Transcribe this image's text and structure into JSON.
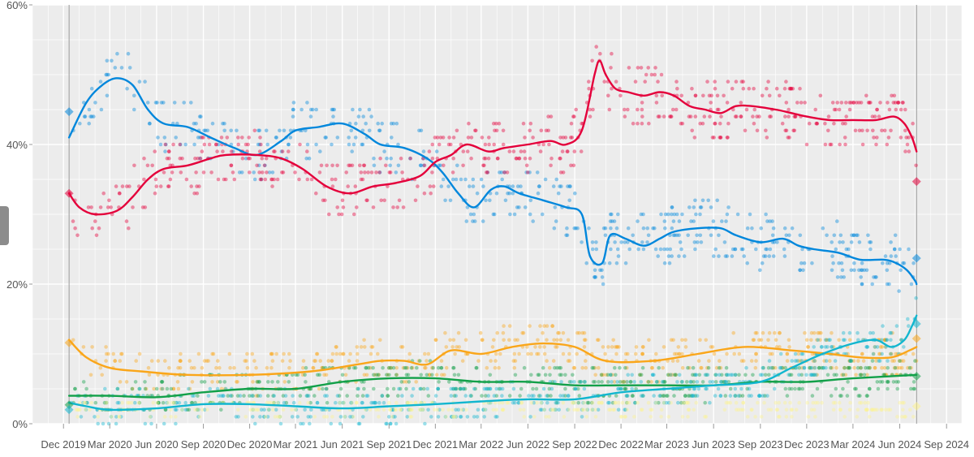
{
  "chart_data": {
    "type": "scatter",
    "title": "",
    "xlabel": "",
    "ylabel": "",
    "y_unit": "%",
    "grid": true,
    "legend": "none",
    "x_range": [
      "2019-10-01",
      "2024-10-01"
    ],
    "ylim": [
      0,
      60
    ],
    "y_ticks": [
      {
        "value": 0,
        "label": "0%"
      },
      {
        "value": 20,
        "label": "20%"
      },
      {
        "value": 40,
        "label": "40%"
      },
      {
        "value": 60,
        "label": "60%"
      }
    ],
    "x_ticks": [
      {
        "date": "2019-12-01",
        "label": "Dec 2019"
      },
      {
        "date": "2020-03-01",
        "label": "Mar 2020"
      },
      {
        "date": "2020-06-01",
        "label": "Jun 2020"
      },
      {
        "date": "2020-09-01",
        "label": "Sep 2020"
      },
      {
        "date": "2020-12-01",
        "label": "Dec 2020"
      },
      {
        "date": "2021-03-01",
        "label": "Mar 2021"
      },
      {
        "date": "2021-06-01",
        "label": "Jun 2021"
      },
      {
        "date": "2021-09-01",
        "label": "Sep 2021"
      },
      {
        "date": "2021-12-01",
        "label": "Dec 2021"
      },
      {
        "date": "2022-03-01",
        "label": "Mar 2022"
      },
      {
        "date": "2022-06-01",
        "label": "Jun 2022"
      },
      {
        "date": "2022-09-01",
        "label": "Sep 2022"
      },
      {
        "date": "2022-12-01",
        "label": "Dec 2022"
      },
      {
        "date": "2023-03-01",
        "label": "Mar 2023"
      },
      {
        "date": "2023-06-01",
        "label": "Jun 2023"
      },
      {
        "date": "2023-09-01",
        "label": "Sep 2023"
      },
      {
        "date": "2023-12-01",
        "label": "Dec 2023"
      },
      {
        "date": "2024-03-01",
        "label": "Mar 2024"
      },
      {
        "date": "2024-06-01",
        "label": "Jun 2024"
      },
      {
        "date": "2024-09-01",
        "label": "Sep 2024"
      }
    ],
    "reference_lines": [
      {
        "date": "2019-12-12"
      },
      {
        "date": "2024-07-04"
      }
    ],
    "series": [
      {
        "color": "#0087dc",
        "trend": [
          [
            "2019-12-12",
            41
          ],
          [
            "2020-01-15",
            46
          ],
          [
            "2020-02-15",
            48.5
          ],
          [
            "2020-03-15",
            49.5
          ],
          [
            "2020-04-15",
            48.5
          ],
          [
            "2020-05-15",
            45
          ],
          [
            "2020-06-15",
            43
          ],
          [
            "2020-08-01",
            42.5
          ],
          [
            "2020-09-15",
            41
          ],
          [
            "2020-11-01",
            39.5
          ],
          [
            "2020-12-15",
            38.5
          ],
          [
            "2021-02-01",
            40.5
          ],
          [
            "2021-03-01",
            42
          ],
          [
            "2021-04-15",
            42.5
          ],
          [
            "2021-06-01",
            43
          ],
          [
            "2021-07-15",
            41.5
          ],
          [
            "2021-08-15",
            40
          ],
          [
            "2021-10-01",
            39.5
          ],
          [
            "2021-11-15",
            38
          ],
          [
            "2021-12-15",
            36
          ],
          [
            "2022-01-15",
            33
          ],
          [
            "2022-02-15",
            31
          ],
          [
            "2022-03-20",
            33.5
          ],
          [
            "2022-04-15",
            34
          ],
          [
            "2022-05-15",
            33
          ],
          [
            "2022-07-01",
            32
          ],
          [
            "2022-08-15",
            31
          ],
          [
            "2022-09-15",
            30
          ],
          [
            "2022-10-01",
            24
          ],
          [
            "2022-10-25",
            23
          ],
          [
            "2022-11-10",
            27
          ],
          [
            "2022-12-10",
            26.5
          ],
          [
            "2023-01-15",
            25.5
          ],
          [
            "2023-02-15",
            26.5
          ],
          [
            "2023-03-15",
            27.5
          ],
          [
            "2023-05-01",
            28
          ],
          [
            "2023-06-15",
            28
          ],
          [
            "2023-07-15",
            27
          ],
          [
            "2023-09-01",
            26
          ],
          [
            "2023-10-15",
            26.5
          ],
          [
            "2023-11-15",
            25.5
          ],
          [
            "2023-12-15",
            25
          ],
          [
            "2024-02-01",
            24.5
          ],
          [
            "2024-03-15",
            23.5
          ],
          [
            "2024-05-01",
            23.5
          ],
          [
            "2024-05-25",
            23
          ],
          [
            "2024-06-15",
            22
          ],
          [
            "2024-07-01",
            20.5
          ],
          [
            "2024-07-04",
            20
          ]
        ],
        "band": 4,
        "points": 520,
        "final": 23.7,
        "start": 44.7
      },
      {
        "color": "#e4003b",
        "trend": [
          [
            "2019-12-12",
            33
          ],
          [
            "2020-01-01",
            31
          ],
          [
            "2020-02-01",
            30
          ],
          [
            "2020-03-15",
            30.5
          ],
          [
            "2020-04-15",
            32.5
          ],
          [
            "2020-05-15",
            35
          ],
          [
            "2020-06-15",
            36.5
          ],
          [
            "2020-08-01",
            37
          ],
          [
            "2020-09-15",
            38
          ],
          [
            "2020-10-15",
            38.5
          ],
          [
            "2020-12-15",
            38.5
          ],
          [
            "2021-02-01",
            38
          ],
          [
            "2021-03-15",
            36.5
          ],
          [
            "2021-05-01",
            34
          ],
          [
            "2021-06-15",
            33
          ],
          [
            "2021-08-01",
            34
          ],
          [
            "2021-09-15",
            34.5
          ],
          [
            "2021-11-01",
            35.5
          ],
          [
            "2021-12-01",
            37.5
          ],
          [
            "2022-01-01",
            38.5
          ],
          [
            "2022-02-01",
            40
          ],
          [
            "2022-03-15",
            39
          ],
          [
            "2022-04-15",
            39.5
          ],
          [
            "2022-06-01",
            40
          ],
          [
            "2022-07-15",
            40.5
          ],
          [
            "2022-08-15",
            40
          ],
          [
            "2022-09-15",
            42
          ],
          [
            "2022-10-10",
            50
          ],
          [
            "2022-10-20",
            52
          ],
          [
            "2022-11-01",
            50
          ],
          [
            "2022-11-20",
            48
          ],
          [
            "2022-12-15",
            47.5
          ],
          [
            "2023-01-15",
            47
          ],
          [
            "2023-02-15",
            47.5
          ],
          [
            "2023-03-15",
            47
          ],
          [
            "2023-04-15",
            45.5
          ],
          [
            "2023-05-15",
            45
          ],
          [
            "2023-06-15",
            44.5
          ],
          [
            "2023-07-15",
            45.5
          ],
          [
            "2023-08-15",
            45.5
          ],
          [
            "2023-10-01",
            45
          ],
          [
            "2023-11-01",
            44.5
          ],
          [
            "2023-12-01",
            44
          ],
          [
            "2024-01-15",
            43.5
          ],
          [
            "2024-03-01",
            43.5
          ],
          [
            "2024-04-15",
            43.5
          ],
          [
            "2024-05-20",
            44
          ],
          [
            "2024-06-10",
            43
          ],
          [
            "2024-06-25",
            41
          ],
          [
            "2024-07-04",
            39
          ]
        ],
        "band": 4,
        "points": 560,
        "final": 34.7,
        "start": 33
      },
      {
        "color": "#faa61a",
        "trend": [
          [
            "2019-12-12",
            12
          ],
          [
            "2020-01-15",
            9.5
          ],
          [
            "2020-03-01",
            8
          ],
          [
            "2020-05-01",
            7.5
          ],
          [
            "2020-08-01",
            7
          ],
          [
            "2020-12-01",
            7
          ],
          [
            "2021-04-01",
            7.5
          ],
          [
            "2021-07-01",
            8.5
          ],
          [
            "2021-08-15",
            9
          ],
          [
            "2021-10-01",
            9
          ],
          [
            "2021-11-15",
            8.5
          ],
          [
            "2022-01-01",
            10.5
          ],
          [
            "2022-03-01",
            10
          ],
          [
            "2022-05-01",
            11
          ],
          [
            "2022-07-01",
            11.5
          ],
          [
            "2022-09-01",
            11
          ],
          [
            "2022-11-01",
            9
          ],
          [
            "2023-02-01",
            9
          ],
          [
            "2023-05-01",
            10
          ],
          [
            "2023-08-01",
            11
          ],
          [
            "2023-11-01",
            10.5
          ],
          [
            "2024-01-15",
            10
          ],
          [
            "2024-03-15",
            9.5
          ],
          [
            "2024-05-15",
            9.5
          ],
          [
            "2024-06-20",
            10.5
          ],
          [
            "2024-07-04",
            11
          ]
        ],
        "band": 3,
        "points": 520,
        "final": 12.2,
        "start": 11.6
      },
      {
        "color": "#12a049",
        "trend": [
          [
            "2019-12-12",
            4
          ],
          [
            "2020-03-01",
            4
          ],
          [
            "2020-06-01",
            3.8
          ],
          [
            "2020-09-01",
            4.5
          ],
          [
            "2020-12-01",
            5
          ],
          [
            "2021-03-01",
            5
          ],
          [
            "2021-06-01",
            6
          ],
          [
            "2021-09-01",
            6.5
          ],
          [
            "2021-12-01",
            6.5
          ],
          [
            "2022-03-01",
            6
          ],
          [
            "2022-06-01",
            6
          ],
          [
            "2022-09-01",
            5.5
          ],
          [
            "2022-12-01",
            5.5
          ],
          [
            "2023-03-01",
            5.5
          ],
          [
            "2023-06-01",
            5.5
          ],
          [
            "2023-09-01",
            6
          ],
          [
            "2023-12-01",
            6
          ],
          [
            "2024-03-01",
            6.5
          ],
          [
            "2024-07-04",
            7
          ]
        ],
        "band": 2.5,
        "points": 480,
        "final": 6.8,
        "start": 2.7
      },
      {
        "color": "#12b6cf",
        "trend": [
          [
            "2019-12-12",
            3
          ],
          [
            "2020-01-15",
            2.5
          ],
          [
            "2020-03-01",
            2
          ],
          [
            "2020-06-01",
            2.2
          ],
          [
            "2020-09-01",
            2.8
          ],
          [
            "2020-12-01",
            2.8
          ],
          [
            "2021-03-01",
            2.5
          ],
          [
            "2021-06-01",
            2.2
          ],
          [
            "2021-09-01",
            2.5
          ],
          [
            "2021-12-01",
            2.8
          ],
          [
            "2022-03-01",
            3.2
          ],
          [
            "2022-06-01",
            3.5
          ],
          [
            "2022-09-01",
            3.5
          ],
          [
            "2022-12-01",
            4.5
          ],
          [
            "2023-03-01",
            5
          ],
          [
            "2023-06-01",
            5.5
          ],
          [
            "2023-09-01",
            6
          ],
          [
            "2023-11-01",
            8
          ],
          [
            "2024-01-01",
            10
          ],
          [
            "2024-03-01",
            11.5
          ],
          [
            "2024-04-15",
            12
          ],
          [
            "2024-05-15",
            11
          ],
          [
            "2024-06-10",
            12
          ],
          [
            "2024-06-25",
            14
          ],
          [
            "2024-07-04",
            15.5
          ]
        ],
        "band": 2.5,
        "points": 480,
        "final": 14.3,
        "start": 2
      },
      {
        "color": "#fdf38e",
        "trend": [],
        "band": 1.2,
        "points": 320,
        "final": 2.5,
        "start": 0,
        "noise_center": 2.2
      }
    ]
  }
}
